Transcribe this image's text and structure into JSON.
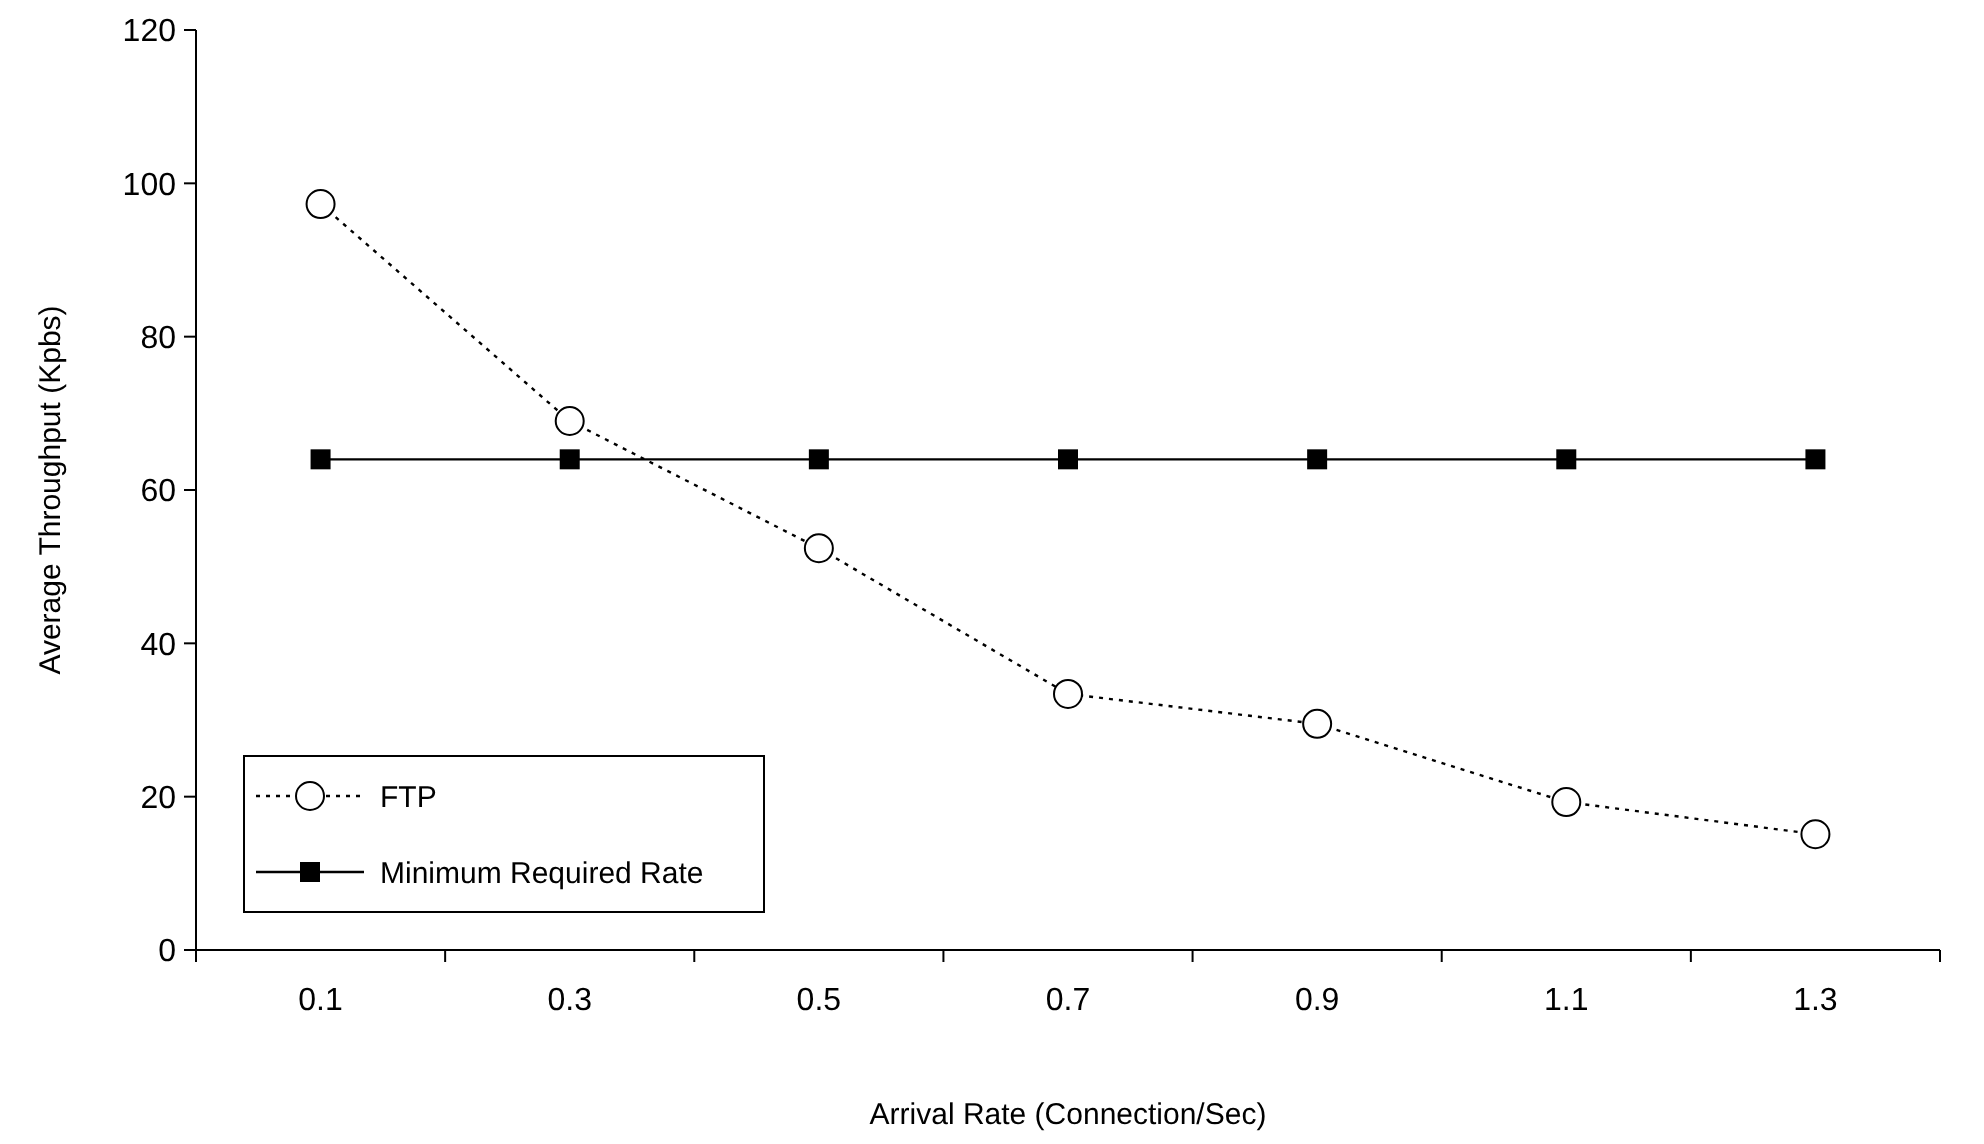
{
  "chart_data": {
    "type": "line",
    "xlabel": "Arrival Rate (Connection/Sec)",
    "ylabel": "Average Throughput (Kpbs)",
    "categories": [
      "0.1",
      "0.3",
      "0.5",
      "0.7",
      "0.9",
      "1.1",
      "1.3"
    ],
    "ylim": [
      0,
      120
    ],
    "yticks": [
      0,
      20,
      40,
      60,
      80,
      100,
      120
    ],
    "grid": false,
    "legend": "bottom left",
    "series": [
      {
        "name": "FTP",
        "color": "#000000",
        "marker": "circle",
        "line_style": "dotted",
        "values": [
          97.3,
          69,
          52.4,
          33.4,
          29.5,
          19.3,
          15.1
        ]
      },
      {
        "name": "Minimum Required Rate",
        "color": "#000000",
        "marker": "square",
        "line_style": "solid",
        "values": [
          64,
          64,
          64,
          64,
          64,
          64,
          64
        ]
      }
    ]
  }
}
